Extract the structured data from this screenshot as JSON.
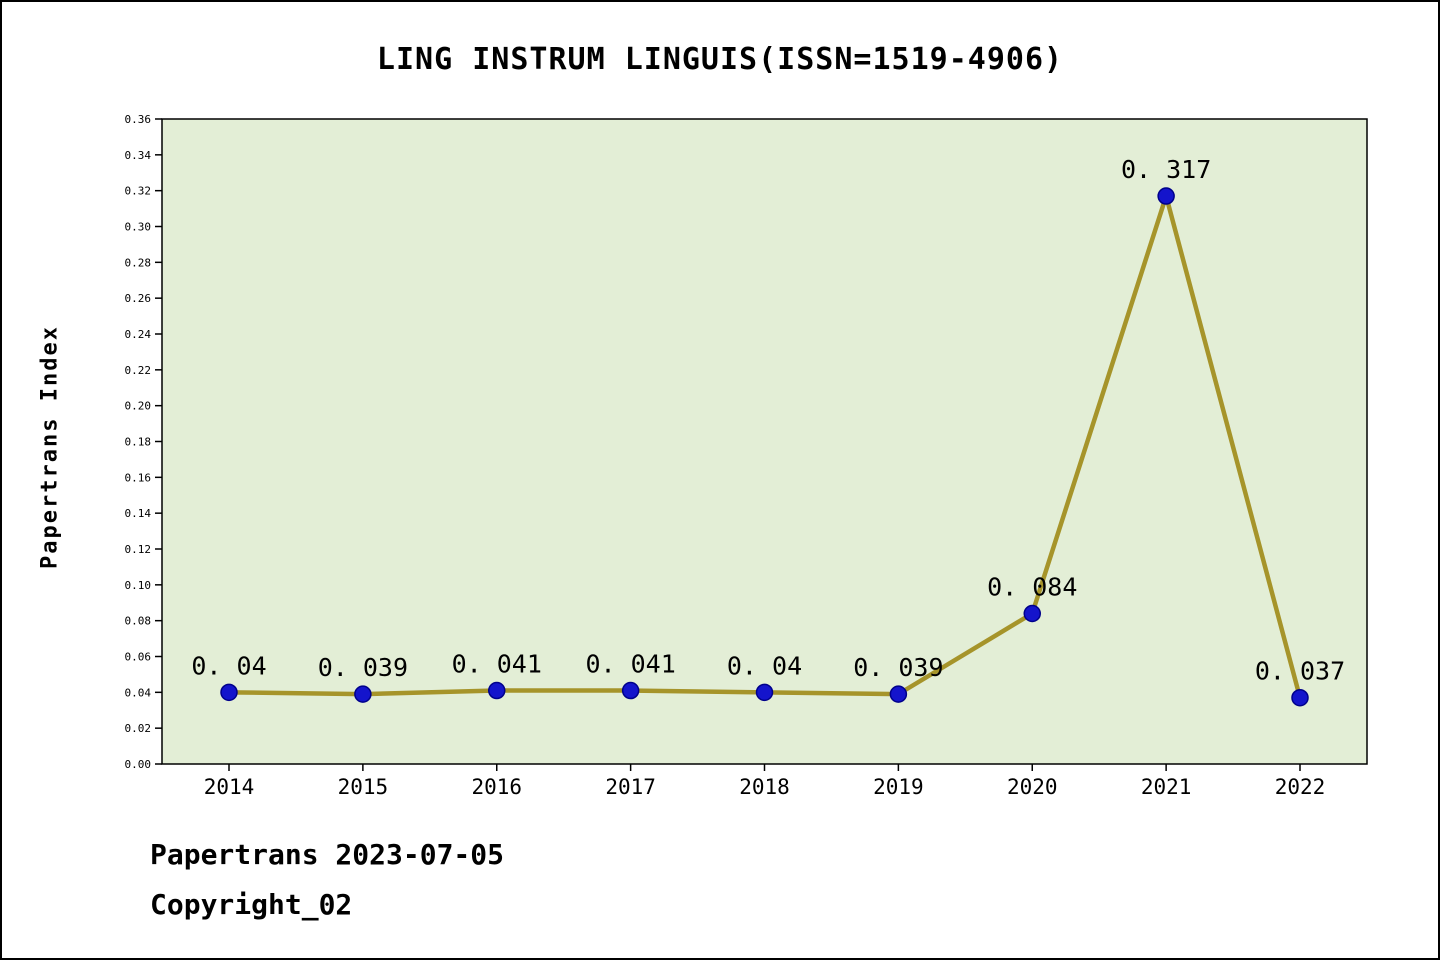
{
  "title": "LING INSTRUM LINGUIS(ISSN=1519-4906)",
  "footer": {
    "line1": "Papertrans 2023-07-05",
    "line2": "Copyright_02"
  },
  "chart_data": {
    "type": "line",
    "title": "LING INSTRUM LINGUIS(ISSN=1519-4906)",
    "xlabel": "",
    "ylabel": "Papertrans Index",
    "categories": [
      "2014",
      "2015",
      "2016",
      "2017",
      "2018",
      "2019",
      "2020",
      "2021",
      "2022"
    ],
    "values": [
      0.04,
      0.039,
      0.041,
      0.041,
      0.04,
      0.039,
      0.084,
      0.317,
      0.037
    ],
    "point_labels": [
      "0. 04",
      "0. 039",
      "0. 041",
      "0. 041",
      "0. 04",
      "0. 039",
      "0. 084",
      "0. 317",
      "0. 037"
    ],
    "ylim": [
      0.0,
      0.36
    ],
    "ytick_step": 0.02,
    "grid": false,
    "legend": "none",
    "colors": {
      "plot_bg": "#e3eed6",
      "line": "#a6942a",
      "marker_fill": "#1414cc",
      "marker_edge": "#00008b",
      "axis": "#000000",
      "text": "#000000"
    }
  }
}
